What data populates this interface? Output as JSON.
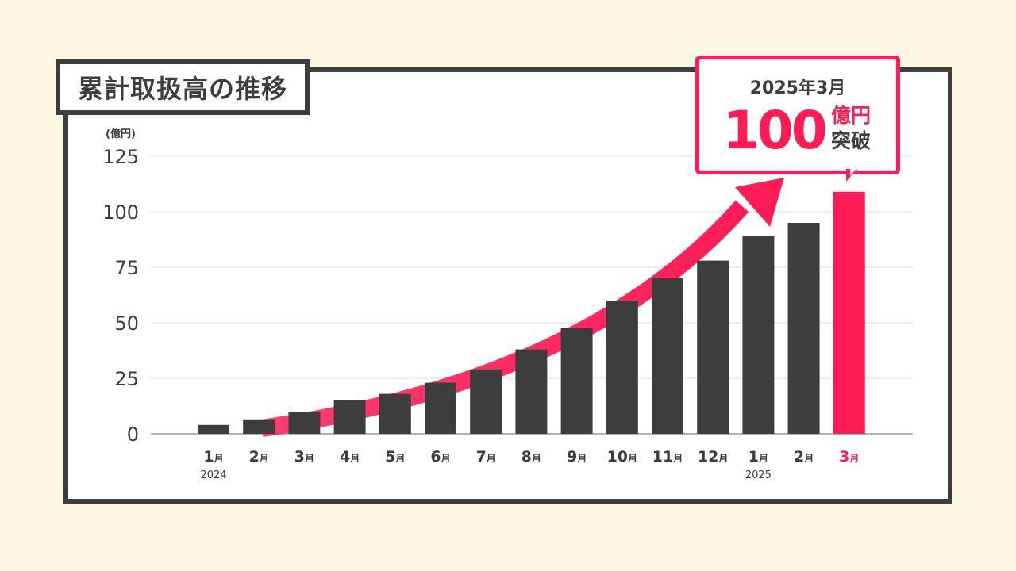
{
  "title": "累計取扱高の推移",
  "callout": {
    "date": "2025年3月",
    "amount": "100",
    "unit": "億円",
    "suffix": "突破"
  },
  "colors": {
    "background": "#fdf8e4",
    "frame": "#3d3d3d",
    "bar": "#3d3d3d",
    "highlight": "#ff1c56",
    "grid": "#dddddd"
  },
  "chart_data": {
    "type": "bar",
    "unit_label": "(億円)",
    "categories": [
      "1月",
      "2月",
      "3月",
      "4月",
      "5月",
      "6月",
      "7月",
      "8月",
      "9月",
      "10月",
      "11月",
      "12月",
      "1月",
      "2月",
      "3月"
    ],
    "year_labels": [
      {
        "index": 0,
        "label": "2024"
      },
      {
        "index": 12,
        "label": "2025"
      }
    ],
    "values": [
      4,
      6.5,
      10,
      15,
      18,
      23,
      29,
      38,
      47.5,
      60,
      70,
      78,
      89,
      95,
      109
    ],
    "highlight_index": 14,
    "yticks": [
      0,
      25,
      50,
      75,
      100,
      125
    ],
    "ylim": [
      0,
      125
    ],
    "grid": true,
    "trend_arrow": true
  }
}
